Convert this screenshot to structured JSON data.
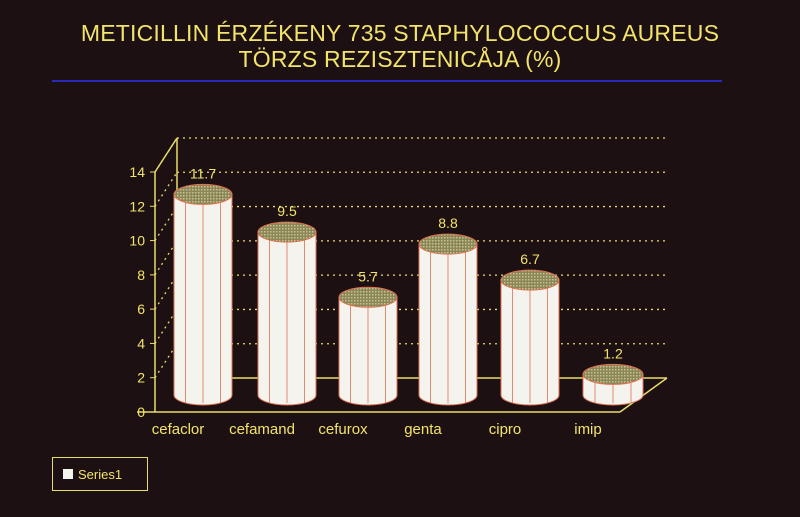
{
  "chart_data": {
    "type": "bar",
    "title": [
      "METICILLIN  ÉRZÉKENY 735 STAPHYLOCOCCUS AUREUS",
      "TÖRZS REZISZTENICÅJA (%)"
    ],
    "categories": [
      "cefaclor",
      "cefamand",
      "cefurox",
      "genta",
      "cipro",
      "imip"
    ],
    "series": [
      {
        "name": "Series1",
        "values": [
          11.7,
          9.5,
          5.7,
          8.8,
          6.7,
          1.2
        ]
      }
    ],
    "data_labels": [
      "11.7",
      "9.5",
      "5.7",
      "8.8",
      "6.7",
      "1.2"
    ],
    "ylim": [
      0,
      14
    ],
    "yticks": [
      "0",
      "2",
      "4",
      "6",
      "8",
      "10",
      "12",
      "14"
    ],
    "grid": true,
    "legend": "bottom-left",
    "style": "3d-cylinder",
    "colors": {
      "background": "#1d1013",
      "text": "#f2e46a",
      "bar": "#f5f3ee",
      "bar_edge": "#e07050",
      "bar_top": "#a09a6a",
      "rule": "#2a2ab8"
    }
  }
}
